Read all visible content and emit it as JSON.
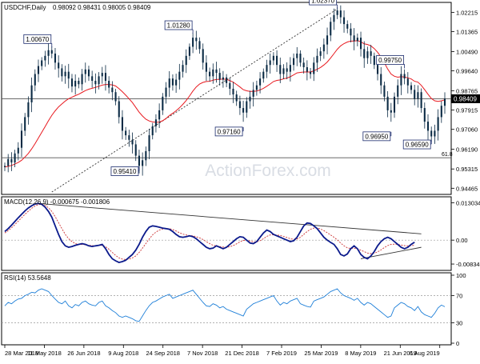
{
  "chart_data": [
    {
      "type": "candlestick",
      "title": "USDCHF,Daily",
      "ohlc_header": "0.98092 0.98431 0.98005 0.98409",
      "watermark": "ActionForex.com",
      "ylim": [
        0.943,
        1.0255
      ],
      "yticks": [
        "1.02215",
        "1.01365",
        "1.00490",
        "0.99640",
        "0.98765",
        "0.97915",
        "0.97060",
        "0.96190",
        "0.95315",
        "0.94465"
      ],
      "x_labels": [
        "28 Mar 2018",
        "11 May 2018",
        "26 Jun 2018",
        "9 Aug 2018",
        "24 Sep 2018",
        "7 Nov 2018",
        "21 Dec 2018",
        "7 Feb 2019",
        "25 Mar 2019",
        "8 May 2019",
        "21 Jun 2019",
        "6 Aug 2019"
      ],
      "last_price": "0.98409",
      "close_series": [
        0.9545,
        0.9575,
        0.956,
        0.96,
        0.9625,
        0.97,
        0.976,
        0.9825,
        0.99,
        0.995,
        0.9985,
        1.001,
        1.003,
        1.0055,
        1.004,
        1.0,
        0.9975,
        0.994,
        0.996,
        0.993,
        0.9895,
        0.992,
        0.9905,
        0.995,
        0.997,
        0.994,
        0.992,
        0.9905,
        0.994,
        0.9955,
        0.992,
        0.989,
        0.987,
        0.983,
        0.976,
        0.97,
        0.968,
        0.966,
        0.964,
        0.959,
        0.9545,
        0.957,
        0.961,
        0.968,
        0.972,
        0.975,
        0.979,
        0.985,
        0.989,
        0.993,
        0.99,
        0.9925,
        0.996,
        0.999,
        1.003,
        1.007,
        1.011,
        1.0095,
        1.006,
        1.0,
        0.996,
        0.994,
        0.997,
        0.9955,
        0.9925,
        0.9935,
        0.991,
        0.9885,
        0.986,
        0.983,
        0.98,
        0.978,
        0.983,
        0.985,
        0.988,
        0.99,
        0.993,
        0.996,
        0.999,
        1.001,
        1.003,
        0.999,
        0.995,
        0.9975,
        0.996,
        0.999,
        1.002,
        1.004,
        1.0,
        0.998,
        0.996,
        0.995,
        1.0,
        1.003,
        1.005,
        1.008,
        1.012,
        1.018,
        1.021,
        1.023,
        1.02,
        1.017,
        1.015,
        1.012,
        1.0095,
        1.011,
        1.006,
        1.002,
        1.005,
        1.003,
        0.999,
        0.995,
        0.99,
        0.985,
        0.979,
        0.978,
        0.985,
        0.99,
        0.995,
        0.993,
        0.99,
        0.988,
        0.984,
        0.987,
        0.98,
        0.974,
        0.97,
        0.9675,
        0.97,
        0.976,
        0.981,
        0.9841
      ],
      "ma_series": [
        0.954,
        0.9543,
        0.9547,
        0.9553,
        0.956,
        0.957,
        0.9584,
        0.96,
        0.962,
        0.9643,
        0.9668,
        0.9693,
        0.9718,
        0.9744,
        0.9768,
        0.9788,
        0.9805,
        0.9818,
        0.9831,
        0.9841,
        0.9848,
        0.9855,
        0.9861,
        0.9869,
        0.9877,
        0.9883,
        0.9887,
        0.9891,
        0.9896,
        0.9901,
        0.9904,
        0.9904,
        0.9902,
        0.9897,
        0.9886,
        0.9872,
        0.9857,
        0.9841,
        0.9824,
        0.9803,
        0.9782,
        0.9765,
        0.9751,
        0.9743,
        0.9739,
        0.9737,
        0.9738,
        0.9744,
        0.9754,
        0.9767,
        0.9777,
        0.9788,
        0.9801,
        0.9816,
        0.9833,
        0.9853,
        0.9875,
        0.9893,
        0.9906,
        0.9913,
        0.9917,
        0.9918,
        0.9923,
        0.9926,
        0.9926,
        0.9928,
        0.9926,
        0.9921,
        0.9914,
        0.9904,
        0.9893,
        0.9881,
        0.9876,
        0.9873,
        0.9873,
        0.9875,
        0.988,
        0.9887,
        0.9896,
        0.9906,
        0.9917,
        0.9922,
        0.9924,
        0.9929,
        0.9932,
        0.9938,
        0.9946,
        0.9955,
        0.9957,
        0.9959,
        0.9959,
        0.9959,
        0.9964,
        0.9971,
        0.9979,
        0.999,
        1.0003,
        1.0021,
        1.004,
        1.0059,
        1.0074,
        1.0084,
        1.0091,
        1.0095,
        1.0095,
        1.0097,
        1.0092,
        1.0083,
        1.008,
        1.0074,
        1.0062,
        1.0046,
        1.0025,
        1.0,
        0.9972,
        0.995,
        0.994,
        0.9936,
        0.9938,
        0.9937,
        0.9933,
        0.9928,
        0.9918,
        0.9914,
        0.99,
        0.9881,
        0.9861,
        0.9842,
        0.9832,
        0.9829,
        0.9832,
        0.9836
      ],
      "annotations": [
        {
          "label": "1.00670",
          "x_index": 14,
          "y": 1.0067
        },
        {
          "label": "0.95410",
          "x_index": 40,
          "y": 0.9541
        },
        {
          "label": "1.01280",
          "x_index": 56,
          "y": 1.0128
        },
        {
          "label": "0.97160",
          "x_index": 71,
          "y": 0.9716
        },
        {
          "label": "1.02370",
          "x_index": 99,
          "y": 1.0237
        },
        {
          "label": "0.96950",
          "x_index": 115,
          "y": 0.9695
        },
        {
          "label": "0.99750",
          "x_index": 119,
          "y": 0.9975
        },
        {
          "label": "0.96590",
          "x_index": 127,
          "y": 0.9659
        }
      ],
      "fib_label": "61.8",
      "fib_level": 0.9581,
      "hlines": [
        0.9841,
        0.9581
      ],
      "trendline": {
        "x_index": [
          14,
          99
        ],
        "y": [
          0.943,
          1.0237
        ]
      }
    },
    {
      "type": "line",
      "title": "MACD(12,26,9) -0.000675 -0.001806",
      "ylim": [
        -0.01,
        0.014
      ],
      "yticks": [
        "0.013034",
        "0.00",
        "-0.00834"
      ],
      "series": [
        {
          "values": [
            0.003,
            0.004,
            0.0052,
            0.0065,
            0.0078,
            0.009,
            0.0102,
            0.0112,
            0.012,
            0.0126,
            0.0128,
            0.0125,
            0.0115,
            0.01,
            0.008,
            0.005,
            0.002,
            -0.0005,
            -0.002,
            -0.0025,
            -0.0022,
            -0.0018,
            -0.0015,
            -0.0012,
            -0.0015,
            -0.002,
            -0.0022,
            -0.002,
            -0.0018,
            -0.0015,
            -0.003,
            -0.005,
            -0.0065,
            -0.0072,
            -0.0078,
            -0.0075,
            -0.007,
            -0.006,
            -0.005,
            -0.0035,
            -0.0015,
            0.001,
            0.003,
            0.0045,
            0.005,
            0.0048,
            0.0045,
            0.0042,
            0.004,
            0.0038,
            0.003,
            0.002,
            0.0012,
            0.001,
            0.0012,
            0.0015,
            0.0012,
            0.0005,
            -0.0005,
            -0.0015,
            -0.0025,
            -0.003,
            -0.0028,
            -0.002,
            -0.0025,
            -0.003,
            -0.0025,
            -0.0015,
            -0.0005,
            0.0005,
            0.0012,
            0.001,
            0.0,
            -0.001,
            -0.0012,
            -0.0005,
            0.001,
            0.0025,
            0.0035,
            0.003,
            0.002,
            0.0015,
            0.001,
            0.0005,
            0.0,
            -0.0005,
            -0.0002,
            0.001,
            0.003,
            0.005,
            0.006,
            0.0058,
            0.005,
            0.004,
            0.0025,
            0.001,
            0.0,
            -0.0008,
            -0.0015,
            -0.003,
            -0.005,
            -0.0055,
            -0.0048,
            -0.003,
            -0.002,
            -0.003,
            -0.005,
            -0.006,
            -0.0065,
            -0.0055,
            -0.004,
            -0.002,
            -0.0005,
            0.0005,
            0.001,
            0.0005,
            -0.0005,
            -0.0015,
            -0.0025,
            -0.003,
            -0.0025,
            -0.0015,
            -0.0007
          ]
        },
        {
          "values": [
            0.0025,
            0.0033,
            0.0043,
            0.0054,
            0.0066,
            0.0078,
            0.009,
            0.0101,
            0.0111,
            0.0119,
            0.0124,
            0.0125,
            0.0121,
            0.0113,
            0.01,
            0.0082,
            0.0061,
            0.004,
            0.002,
            0.0005,
            -0.0005,
            -0.0012,
            -0.0015,
            -0.0015,
            -0.0016,
            -0.0018,
            -0.0019,
            -0.002,
            -0.0019,
            -0.0018,
            -0.0023,
            -0.0032,
            -0.0043,
            -0.0053,
            -0.0062,
            -0.0066,
            -0.0068,
            -0.0066,
            -0.0062,
            -0.0055,
            -0.0043,
            -0.0028,
            -0.0012,
            0.0004,
            0.0018,
            0.0028,
            0.0035,
            0.0039,
            0.004,
            0.004,
            0.0037,
            0.0032,
            0.0026,
            0.0021,
            0.0018,
            0.0016,
            0.0015,
            0.0012,
            0.0008,
            0.0002,
            -0.0005,
            -0.0012,
            -0.0018,
            -0.002,
            -0.0022,
            -0.0024,
            -0.0025,
            -0.0023,
            -0.0019,
            -0.0013,
            -0.0006,
            -0.0001,
            0.0,
            -0.0003,
            -0.0006,
            -0.0006,
            -0.0002,
            0.0005,
            0.0013,
            0.0018,
            0.0019,
            0.0018,
            0.0016,
            0.0013,
            0.0009,
            0.0005,
            0.0003,
            0.0004,
            0.001,
            0.002,
            0.003,
            0.0038,
            0.0042,
            0.0042,
            0.0039,
            0.0033,
            0.0026,
            0.0018,
            0.001,
            0.0001,
            -0.001,
            -0.002,
            -0.0027,
            -0.0029,
            -0.0028,
            -0.003,
            -0.0035,
            -0.004,
            -0.0045,
            -0.0047,
            -0.0046,
            -0.0041,
            -0.0034,
            -0.0026,
            -0.0019,
            -0.0015,
            -0.0014,
            -0.0015,
            -0.0017,
            -0.0019,
            -0.002,
            -0.0019,
            -0.0018
          ]
        }
      ],
      "signal_color": "#cc3333",
      "trendlines": [
        {
          "x_index": [
            10,
            124
          ],
          "y": [
            0.0128,
            0.0022
          ]
        },
        {
          "x_index": [
            106,
            124
          ],
          "y": [
            -0.0065,
            -0.0025
          ]
        }
      ]
    },
    {
      "type": "line",
      "title": "RSI(14) 53.5648",
      "ylim": [
        0,
        100
      ],
      "yticks": [
        "100",
        "70",
        "30",
        "0"
      ],
      "levels": [
        70,
        30
      ],
      "series": [
        {
          "values": [
            55,
            60,
            58,
            62,
            65,
            66,
            70,
            72,
            75,
            74,
            78,
            80,
            78,
            76,
            70,
            65,
            60,
            58,
            62,
            55,
            52,
            57,
            55,
            60,
            62,
            58,
            56,
            55,
            60,
            62,
            55,
            52,
            48,
            45,
            40,
            38,
            40,
            38,
            36,
            33,
            32,
            40,
            48,
            55,
            60,
            62,
            65,
            68,
            70,
            72,
            66,
            68,
            70,
            72,
            74,
            76,
            78,
            72,
            66,
            60,
            55,
            54,
            58,
            56,
            52,
            54,
            50,
            48,
            46,
            44,
            42,
            40,
            50,
            54,
            58,
            60,
            62,
            64,
            66,
            68,
            70,
            62,
            56,
            60,
            58,
            62,
            64,
            66,
            58,
            56,
            54,
            53,
            62,
            64,
            66,
            68,
            72,
            76,
            78,
            80,
            74,
            70,
            68,
            66,
            63,
            66,
            60,
            56,
            60,
            58,
            54,
            50,
            46,
            42,
            38,
            40,
            52,
            56,
            60,
            58,
            54,
            52,
            48,
            54,
            46,
            42,
            40,
            38,
            44,
            52,
            56,
            53.6
          ]
        }
      ],
      "line_color": "#1e7fd8"
    }
  ]
}
